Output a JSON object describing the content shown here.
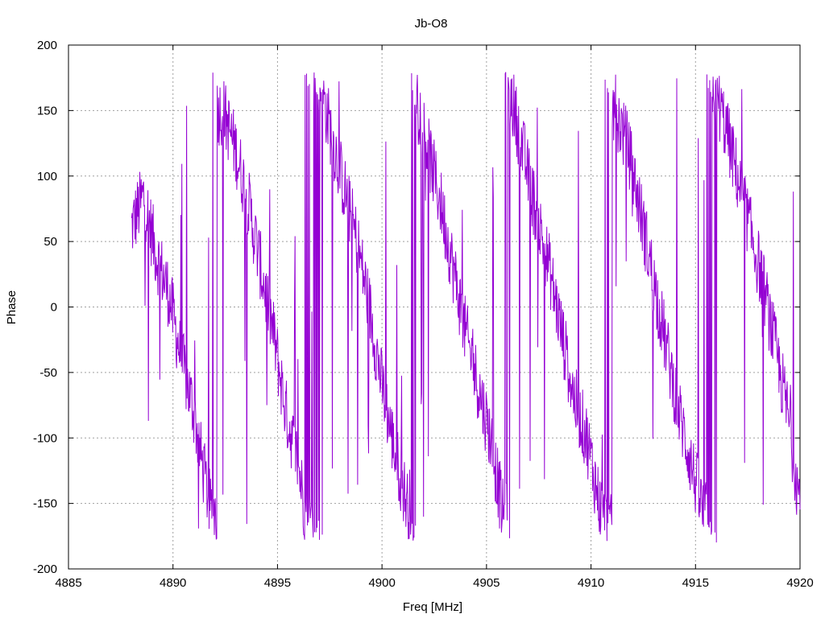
{
  "chart_data": {
    "type": "line",
    "title": "Jb-O8",
    "xlabel": "Freq [MHz]",
    "ylabel": "Phase",
    "xlim": [
      4885,
      4920
    ],
    "ylim": [
      -200,
      200
    ],
    "xticks": [
      4885,
      4890,
      4895,
      4900,
      4905,
      4910,
      4915,
      4920
    ],
    "xtick_labels": [
      "4885",
      "4890",
      "4895",
      "4900",
      "4905",
      "4910",
      "4915",
      "4920"
    ],
    "yticks": [
      -200,
      -150,
      -100,
      -50,
      0,
      50,
      100,
      150,
      200
    ],
    "ytick_labels": [
      "-200",
      "-150",
      "-100",
      "-50",
      "0",
      "50",
      "100",
      "150",
      "200"
    ],
    "grid": true,
    "series": [
      {
        "color": "#9400d3",
        "x": [
          4888.0,
          4888.6,
          4889.2,
          4889.8,
          4890.4,
          4891.0,
          4891.4,
          4891.8,
          4892.4,
          4893.0,
          4893.6,
          4894.2,
          4894.8,
          4895.4,
          4896.0,
          4896.4,
          4897.0,
          4897.6,
          4898.2,
          4898.8,
          4899.4,
          4900.0,
          4900.6,
          4901.2,
          4901.6,
          4902.2,
          4902.8,
          4903.4,
          4904.0,
          4904.6,
          4905.2,
          4905.8,
          4906.2,
          4906.8,
          4907.4,
          4908.0,
          4908.6,
          4909.2,
          4909.8,
          4910.4,
          4910.8,
          4911.2,
          4911.8,
          4912.4,
          4913.0,
          4913.6,
          4914.2,
          4914.8,
          4915.4,
          4915.8,
          4916.4,
          4917.0,
          4917.6,
          4918.2,
          4918.8,
          4919.4,
          4920.0
        ],
        "y": [
          60,
          85,
          40,
          10,
          -40,
          -80,
          -120,
          -155,
          150,
          120,
          80,
          30,
          -20,
          -80,
          -120,
          -165,
          175,
          130,
          90,
          50,
          0,
          -60,
          -110,
          -150,
          170,
          120,
          80,
          30,
          -20,
          -60,
          -100,
          -160,
          160,
          115,
          70,
          30,
          -20,
          -70,
          -100,
          -150,
          -170,
          150,
          120,
          70,
          20,
          -30,
          -80,
          -120,
          -160,
          170,
          140,
          100,
          60,
          20,
          -30,
          -80,
          -150
        ]
      }
    ]
  }
}
